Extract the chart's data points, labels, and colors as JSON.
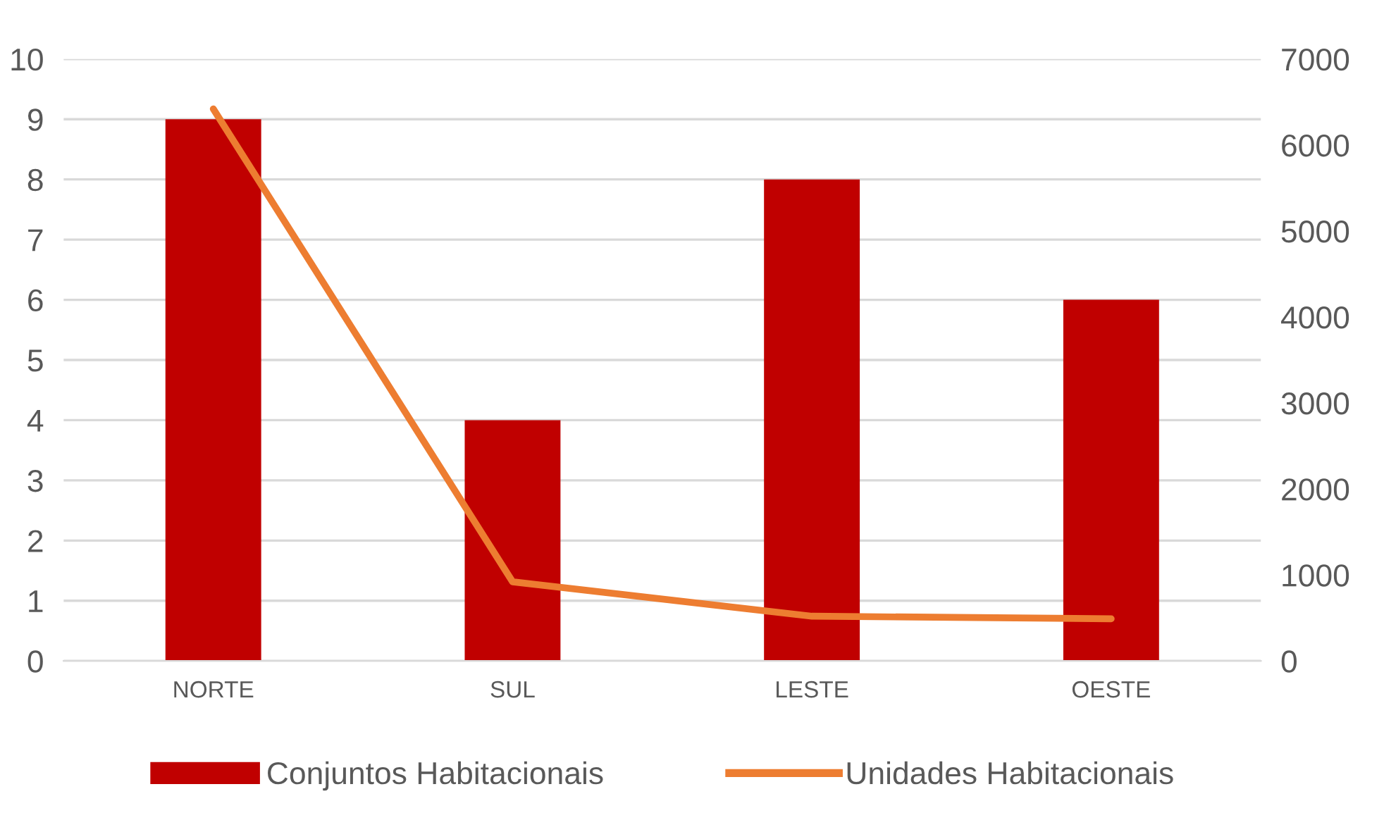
{
  "chart_data": {
    "type": "bar",
    "categories": [
      "NORTE",
      "SUL",
      "LESTE",
      "OESTE"
    ],
    "series": [
      {
        "name": "Conjuntos Habitacionais",
        "color": "#c00000",
        "values": [
          9,
          4,
          8,
          6
        ]
      },
      {
        "name": "Unidades Habitacionais",
        "type": "line",
        "axis": "y2",
        "color": "#ed7d31",
        "values": [
          6420,
          920,
          520,
          490
        ]
      }
    ],
    "ylim": [
      0,
      10
    ],
    "yticks": [
      0,
      1,
      2,
      3,
      4,
      5,
      6,
      7,
      8,
      9,
      10
    ],
    "y2lim": [
      0,
      7000
    ],
    "y2ticks": [
      0,
      1000,
      2000,
      3000,
      4000,
      5000,
      6000,
      7000
    ],
    "grid": "y",
    "legend": "bottom",
    "marker": "none",
    "line_style": "solid"
  }
}
